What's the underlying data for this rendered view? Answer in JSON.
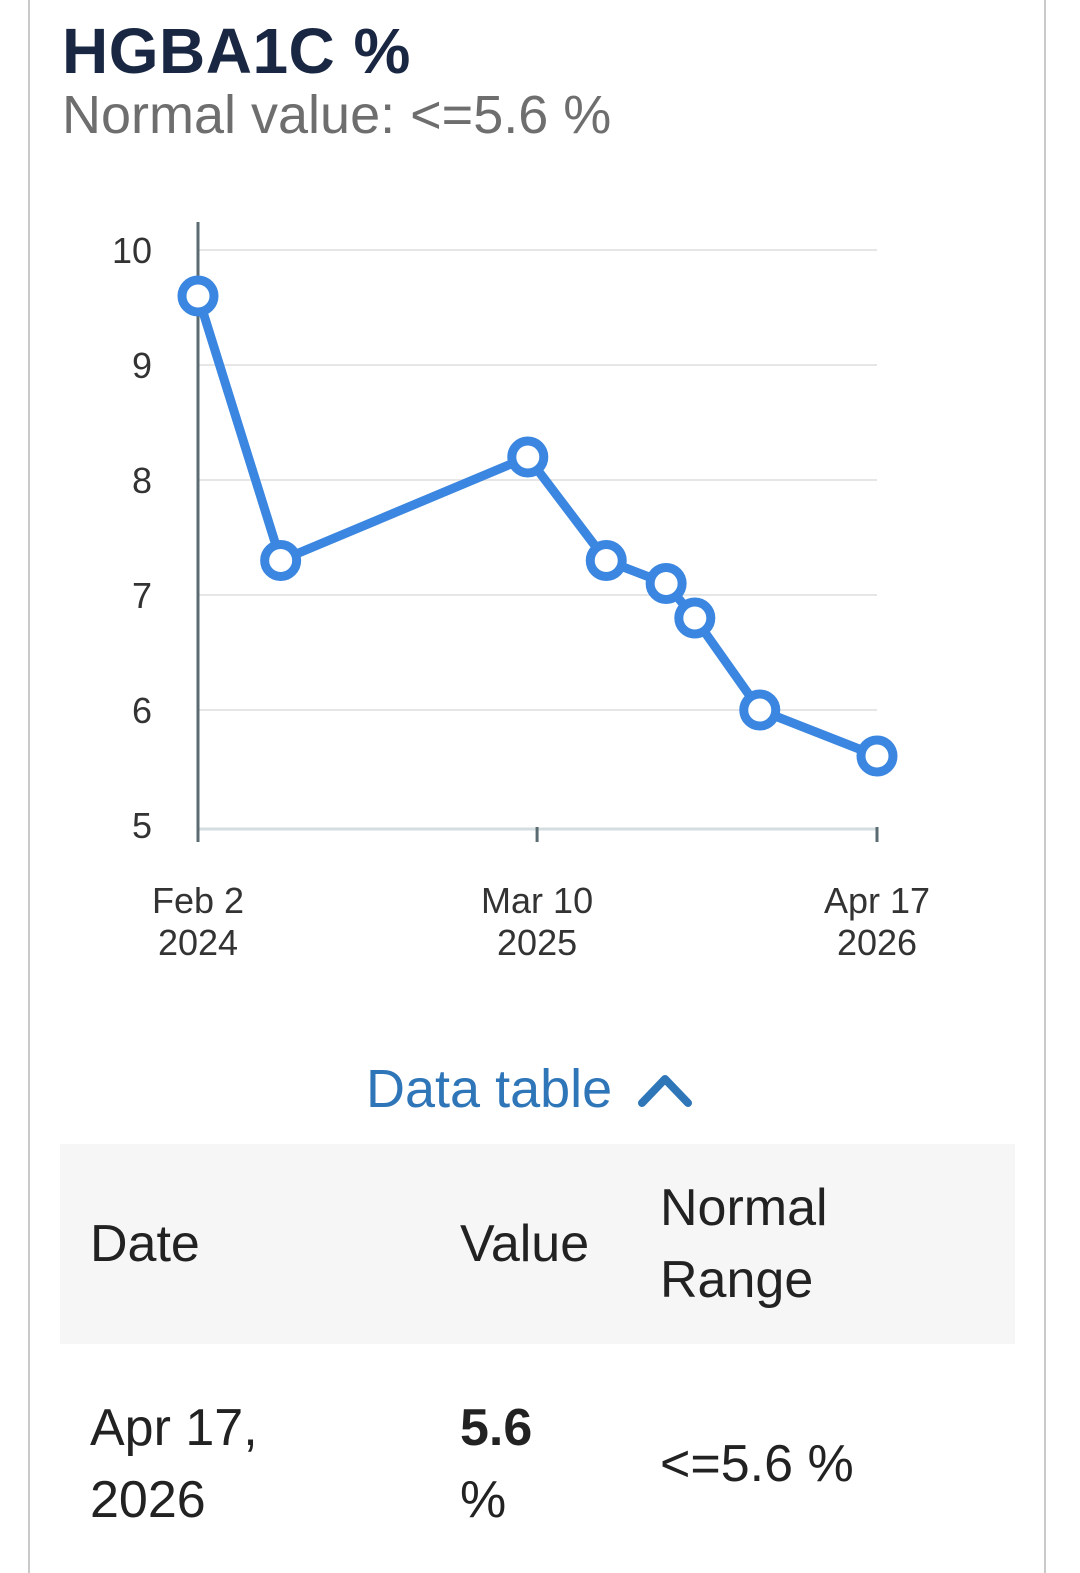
{
  "header": {
    "title": "HGBA1C %",
    "subtitle": "Normal value: <=5.6 %"
  },
  "chart_data": {
    "type": "line",
    "title": "HGBA1C %",
    "ylim": [
      5,
      10
    ],
    "yticks": [
      "5",
      "6",
      "7",
      "8",
      "9",
      "10"
    ],
    "xlim": [
      "2024-02-02",
      "2026-04-17"
    ],
    "xticks": [
      {
        "date": "2024-02-02",
        "label_line1": "Feb 2",
        "label_line2": "2024"
      },
      {
        "date": "2025-03-10",
        "label_line1": "Mar 10",
        "label_line2": "2025"
      },
      {
        "date": "2026-04-17",
        "label_line1": "Apr 17",
        "label_line2": "2026"
      }
    ],
    "grid": true,
    "series": [
      {
        "color": "#3a86e0",
        "points": [
          {
            "x": "2024-02-02",
            "y": 9.6
          },
          {
            "x": "2024-05-10",
            "y": 7.3
          },
          {
            "x": "2025-02-27",
            "y": 8.2
          },
          {
            "x": "2025-05-31",
            "y": 7.3
          },
          {
            "x": "2025-08-10",
            "y": 7.1
          },
          {
            "x": "2025-09-13",
            "y": 6.8
          },
          {
            "x": "2025-11-29",
            "y": 6.0
          },
          {
            "x": "2026-04-17",
            "y": 5.6
          }
        ]
      }
    ]
  },
  "data_table": {
    "toggle_label": "Data table",
    "columns": {
      "date": "Date",
      "value": "Value",
      "normal_line1": "Normal",
      "normal_line2": "Range"
    },
    "rows": [
      {
        "date_line1": "Apr 17,",
        "date_line2": "2026",
        "value": "5.6",
        "unit": "%",
        "normal_range": "<=5.6 %"
      }
    ]
  },
  "colors": {
    "title": "#1a2743",
    "line": "#3a86e0",
    "link": "#2f76b9"
  }
}
